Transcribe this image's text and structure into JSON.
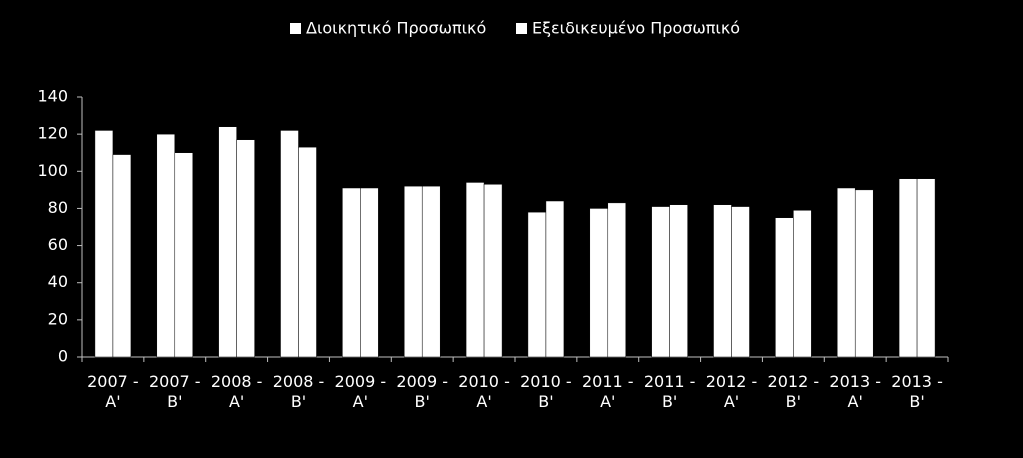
{
  "chart_data": {
    "type": "bar",
    "categories": [
      "2007 - A'",
      "2007 - B'",
      "2008 - A'",
      "2008 - B'",
      "2009 - A'",
      "2009 - B'",
      "2010 - A'",
      "2010 - B'",
      "2011 - A'",
      "2011 - B'",
      "2012 - A'",
      "2012 - B'",
      "2013 - A'",
      "2013 - B'"
    ],
    "series": [
      {
        "name": "Διοικητικό Προσωπικό",
        "color": "#ffffff",
        "values": [
          122,
          120,
          124,
          122,
          91,
          92,
          94,
          78,
          80,
          81,
          82,
          75,
          91,
          96
        ]
      },
      {
        "name": "Εξειδικευμένο Προσωπικό",
        "color": "#ffffff",
        "values": [
          109,
          110,
          117,
          113,
          91,
          92,
          93,
          84,
          83,
          82,
          81,
          79,
          90,
          96
        ]
      }
    ],
    "ylim": [
      0,
      140
    ],
    "yticks": [
      0,
      20,
      40,
      60,
      80,
      100,
      120,
      140
    ],
    "legend": "top"
  }
}
